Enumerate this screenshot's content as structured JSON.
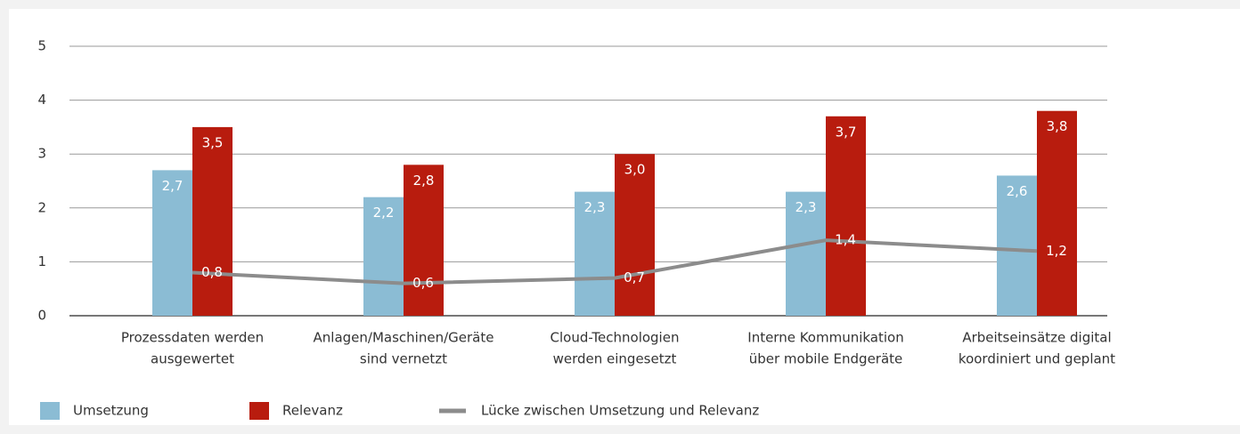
{
  "chart_data": {
    "type": "bar_line",
    "categories": [
      [
        "Prozessdaten werden",
        "ausgewertet"
      ],
      [
        "Anlagen/Maschinen/Geräte",
        "sind vernetzt"
      ],
      [
        "Cloud-Technologien",
        "werden eingesetzt"
      ],
      [
        "Interne Kommunikation",
        "über mobile Endgeräte"
      ],
      [
        "Arbeitseinsätze digital",
        "koordiniert und geplant"
      ]
    ],
    "series": [
      {
        "name": "Umsetzung",
        "color": "#8bbcd4",
        "kind": "bar",
        "values": [
          2.7,
          2.2,
          2.3,
          2.3,
          2.6
        ],
        "value_labels": [
          "2,7",
          "2,2",
          "2,3",
          "2,3",
          "2,6"
        ]
      },
      {
        "name": "Relevanz",
        "color": "#b81c0e",
        "kind": "bar",
        "values": [
          3.5,
          2.8,
          3.0,
          3.7,
          3.8
        ],
        "value_labels": [
          "3,5",
          "2,8",
          "3,0",
          "3,7",
          "3,8"
        ]
      },
      {
        "name": "Lücke zwischen Umsetzung und Relevanz",
        "color": "#8c8c8c",
        "kind": "line",
        "values": [
          0.8,
          0.6,
          0.7,
          1.4,
          1.2
        ],
        "value_labels": [
          "0,8",
          "0,6",
          "0,7",
          "1,4",
          "1,2"
        ]
      }
    ],
    "ylim": [
      0,
      5
    ],
    "yticks": [
      0,
      1,
      2,
      3,
      4,
      5
    ],
    "grid": true,
    "legend": "bottom-left"
  }
}
